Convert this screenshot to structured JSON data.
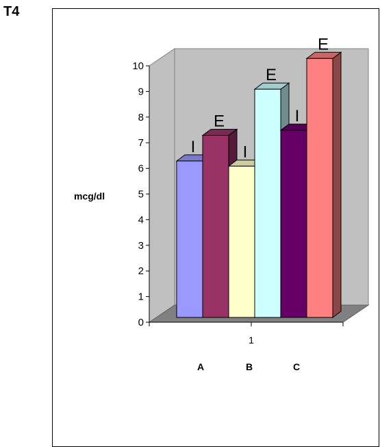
{
  "title": "T4",
  "chart_data": {
    "type": "bar",
    "style": "3d-clustered-column",
    "ylabel": "mcg/dl",
    "ylim": [
      0,
      10
    ],
    "yticks": [
      "0",
      "1",
      "2",
      "3",
      "4",
      "5",
      "6",
      "7",
      "8",
      "9",
      "10"
    ],
    "x_category_label": "1",
    "group_labels": [
      "A",
      "B",
      "C"
    ],
    "bars": [
      {
        "label": "I",
        "group": "A",
        "value": 6.1,
        "color": "#9999ff"
      },
      {
        "label": "E",
        "group": "A",
        "value": 7.1,
        "color": "#993366"
      },
      {
        "label": "I",
        "group": "B",
        "value": 5.9,
        "color": "#ffffcc"
      },
      {
        "label": "E",
        "group": "B",
        "value": 8.9,
        "color": "#ccffff"
      },
      {
        "label": "I",
        "group": "C",
        "value": 7.3,
        "color": "#660066"
      },
      {
        "label": "E",
        "group": "C",
        "value": 10.1,
        "color": "#ff8080"
      }
    ],
    "grid": false,
    "legend": "none"
  }
}
